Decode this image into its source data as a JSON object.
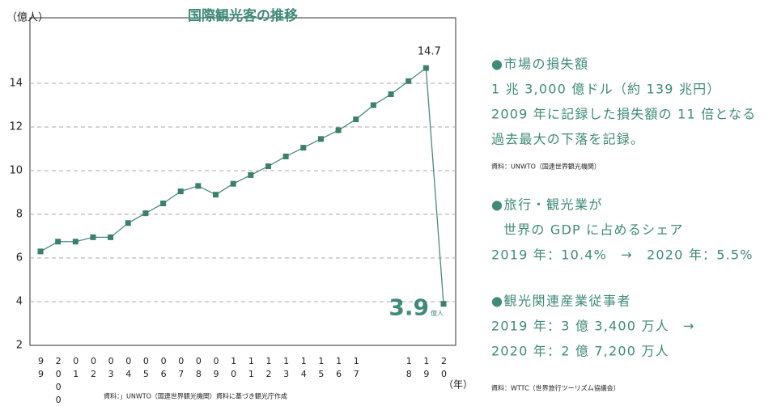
{
  "chart_data": {
    "type": "line",
    "title": "国際観光客の推移",
    "y_label": "（億人）",
    "x_label": "（年）",
    "source": "資料：」UNWTO（国連世界観光機関）資料に基づき観光庁作成",
    "categories": [
      "99",
      "2000",
      "01",
      "02",
      "03",
      "04",
      "05",
      "06",
      "07",
      "08",
      "09",
      "10",
      "11",
      "12",
      "13",
      "14",
      "15",
      "16",
      "17",
      null,
      null,
      "18",
      "19",
      "20"
    ],
    "values": [
      6.3,
      6.75,
      6.75,
      6.95,
      6.95,
      7.6,
      8.05,
      8.5,
      9.05,
      9.3,
      8.9,
      9.4,
      9.8,
      10.2,
      10.65,
      11.05,
      11.45,
      11.85,
      12.35,
      13.0,
      13.5,
      14.1,
      14.7,
      3.9
    ],
    "labeled_points": [
      22,
      23
    ],
    "last_label_unit": "億人",
    "color": "#4a8a7e",
    "ylim": [
      2,
      17
    ],
    "yticks": [
      2,
      4,
      6,
      8,
      10,
      12,
      14
    ],
    "grid": true
  },
  "panel": {
    "sections": [
      {
        "heading": "●市場の損失額",
        "lines": [
          "1 兆 3,000 億ドル（約 139 兆円）",
          "2009 年に記録した損失額の 11 倍となる",
          "過去最大の下落を記録。"
        ],
        "source": "資料：UNWTO（国連世界観光機関）"
      },
      {
        "heading": "●旅行・観光業が",
        "lines": [
          "世界の GDP に占めるシェア",
          "2019 年：10.4%　→　2020 年：5.5%"
        ]
      },
      {
        "heading": "●観光関連産業従事者",
        "lines": [
          "2019 年：3 億 3,400 万人　→",
          "2020 年：2 億 7,200 万人"
        ],
        "source": "資料：WTTC（世界旅行ツーリズム協議会）"
      }
    ]
  }
}
